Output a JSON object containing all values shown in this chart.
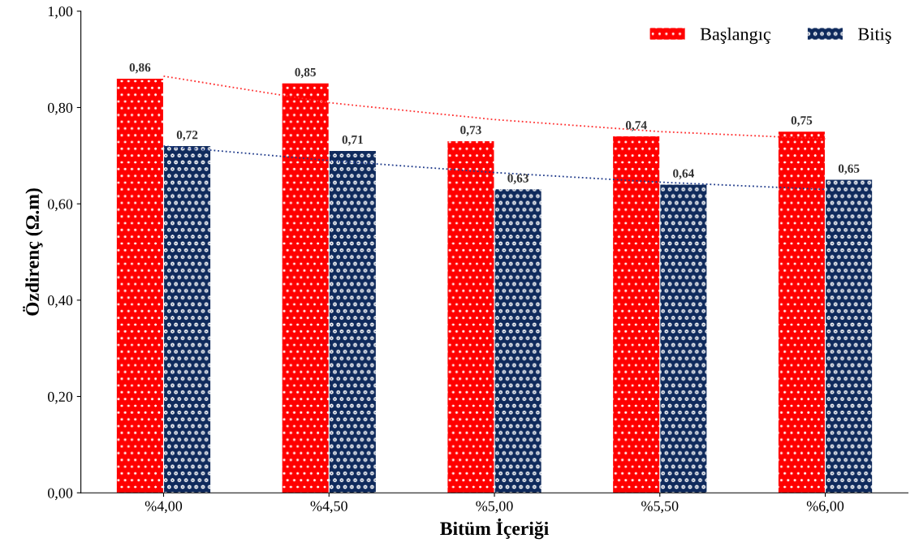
{
  "chart_data": {
    "type": "bar",
    "xlabel": "Bitüm İçeriği",
    "ylabel": "Özdirenç (Ω.m)",
    "categories": [
      "%4,00",
      "%4,50",
      "%5,00",
      "%5,50",
      "%6,00"
    ],
    "series": [
      {
        "name": "Başlangıç",
        "color": "#ff0000",
        "values": [
          0.86,
          0.85,
          0.73,
          0.74,
          0.75
        ],
        "value_labels": [
          "0,86",
          "0,85",
          "0,73",
          "0,74",
          "0,75"
        ]
      },
      {
        "name": "Bitiş",
        "color": "#0f2a5c",
        "values": [
          0.72,
          0.71,
          0.63,
          0.64,
          0.65
        ],
        "value_labels": [
          "0,72",
          "0,71",
          "0,63",
          "0,64",
          "0,65"
        ]
      },
      {
        "type": "line",
        "color": "#ff3030",
        "line_style": "dotted",
        "values": [
          0.865,
          0.81,
          0.775,
          0.75,
          0.735
        ]
      },
      {
        "type": "line",
        "color": "#1f3a8a",
        "line_style": "dotted",
        "values": [
          0.72,
          0.69,
          0.665,
          0.645,
          0.63
        ]
      }
    ],
    "ylim": [
      0,
      1
    ],
    "yticks": [
      {
        "value": 0,
        "label": "0,00"
      },
      {
        "value": 0.2,
        "label": "0,20"
      },
      {
        "value": 0.4,
        "label": "0,40"
      },
      {
        "value": 0.6,
        "label": "0,60"
      },
      {
        "value": 0.8,
        "label": "0,80"
      },
      {
        "value": 1,
        "label": "1,00"
      }
    ],
    "grid": false,
    "legend": "top right"
  }
}
